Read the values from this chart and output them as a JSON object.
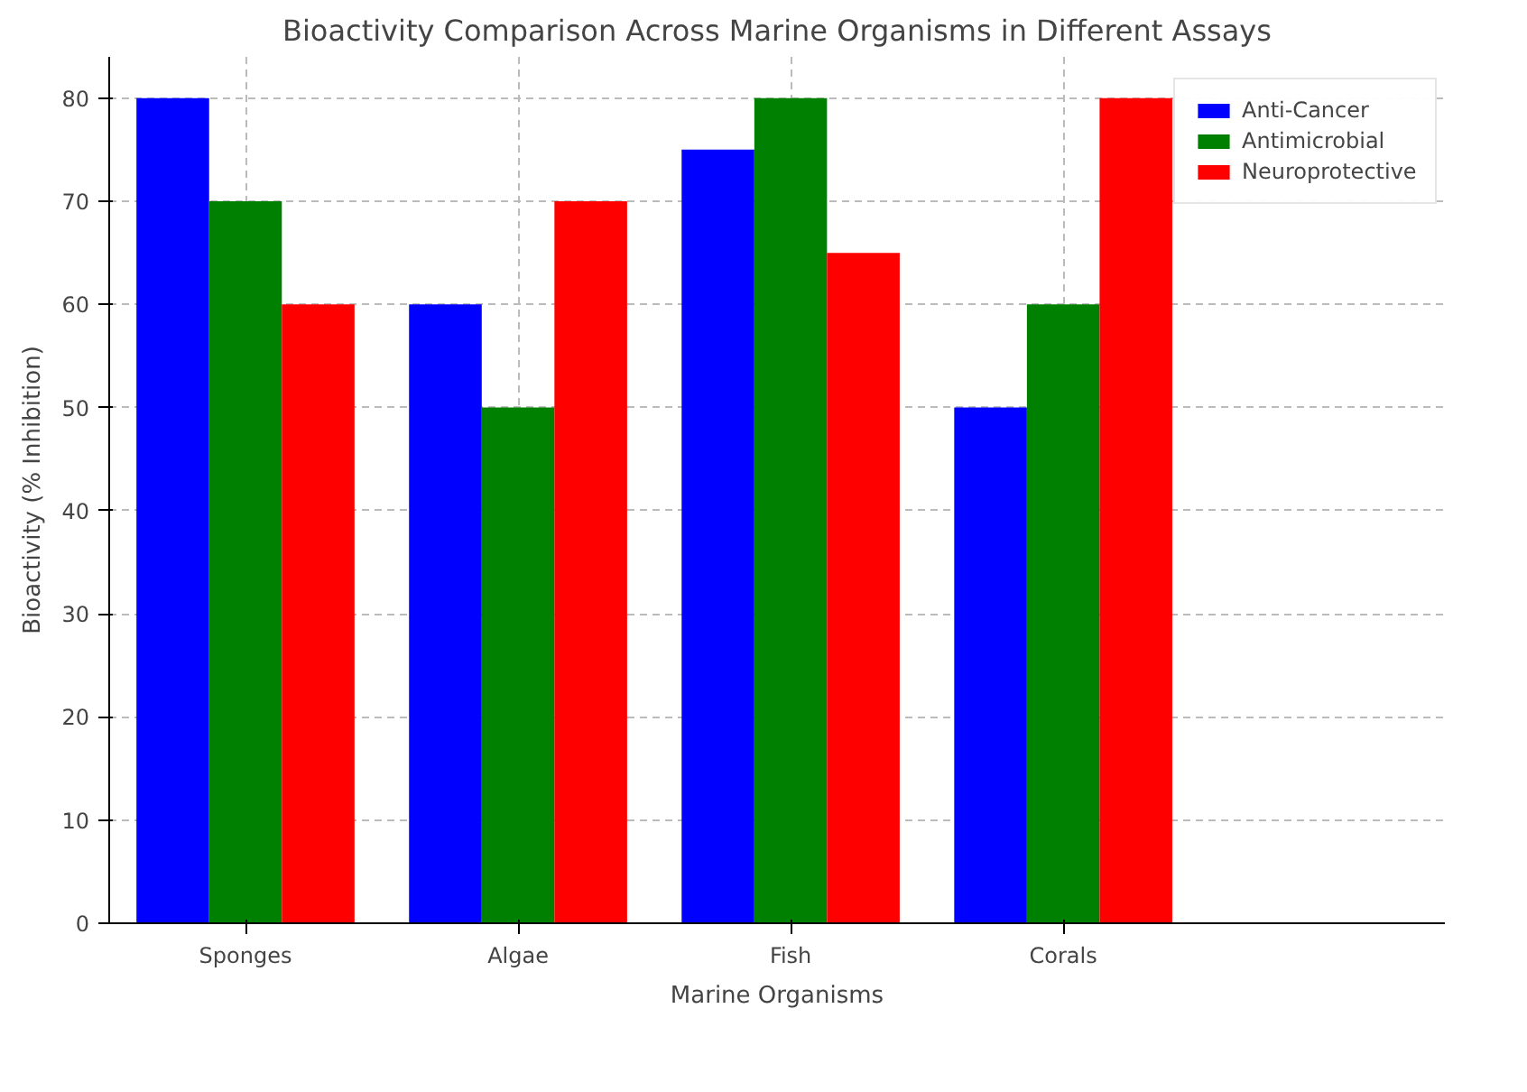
{
  "chart_data": {
    "type": "bar",
    "title": "Bioactivity Comparison Across Marine Organisms in Different Assays",
    "xlabel": "Marine Organisms",
    "ylabel": "Bioactivity (% Inhibition)",
    "categories": [
      "Sponges",
      "Algae",
      "Fish",
      "Corals"
    ],
    "series": [
      {
        "name": "Anti-Cancer",
        "color": "#0000ff",
        "values": [
          80,
          60,
          75,
          50
        ]
      },
      {
        "name": "Antimicrobial",
        "color": "#008000",
        "values": [
          70,
          50,
          80,
          60
        ]
      },
      {
        "name": "Neuroprotective",
        "color": "#ff0000",
        "values": [
          60,
          70,
          65,
          80
        ]
      }
    ],
    "ylim": [
      0,
      84
    ],
    "yticks": [
      0,
      10,
      20,
      30,
      40,
      50,
      60,
      70,
      80
    ],
    "grid": true,
    "legend": "top right"
  }
}
